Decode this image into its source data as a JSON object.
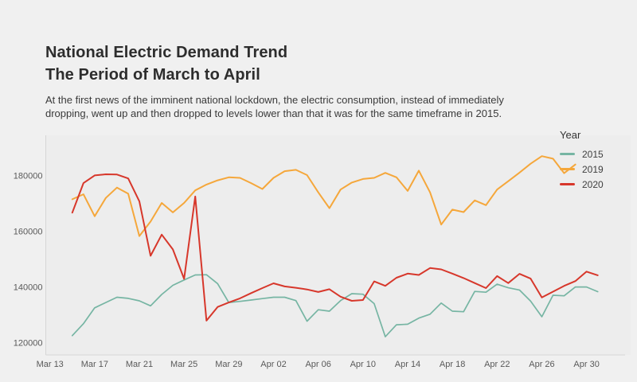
{
  "page": {
    "background": "#f0f0f0",
    "panel_background": "#ededed",
    "axis_line_color": "#d6d6d6"
  },
  "header": {
    "title_line1": "National Electric Demand Trend",
    "title_line2": "The Period of March to April",
    "subtitle_line1": "At the first news of the imminent national lockdown, the electric consumption, instead of immediately",
    "subtitle_line2": "dropping, went up and then dropped to levels lower than that it was for the same timeframe in 2015."
  },
  "legend": {
    "title": "Year",
    "items": [
      {
        "label": "2015",
        "color": "#76b5a3"
      },
      {
        "label": "2019",
        "color": "#f5a73b"
      },
      {
        "label": "2020",
        "color": "#d7372b"
      }
    ]
  },
  "chart_data": {
    "type": "line",
    "title": "National Electric Demand Trend — The Period of March to April",
    "xlabel": "",
    "ylabel": "",
    "grid": false,
    "legend_position": "top-right",
    "ylim": [
      113000,
      194500
    ],
    "y_ticks": [
      120000,
      140000,
      160000,
      180000
    ],
    "x_tick_labels": [
      "Mar 13",
      "Mar 17",
      "Mar 21",
      "Mar 25",
      "Mar 29",
      "Apr 02",
      "Apr 06",
      "Apr 10",
      "Apr 14",
      "Apr 18",
      "Apr 22",
      "Apr 26",
      "Apr 30"
    ],
    "x": [
      "Mar 15",
      "Mar 16",
      "Mar 17",
      "Mar 18",
      "Mar 19",
      "Mar 20",
      "Mar 21",
      "Mar 22",
      "Mar 23",
      "Mar 24",
      "Mar 25",
      "Mar 26",
      "Mar 27",
      "Mar 28",
      "Mar 29",
      "Mar 30",
      "Mar 31",
      "Apr 01",
      "Apr 02",
      "Apr 03",
      "Apr 04",
      "Apr 05",
      "Apr 06",
      "Apr 07",
      "Apr 08",
      "Apr 09",
      "Apr 10",
      "Apr 11",
      "Apr 12",
      "Apr 13",
      "Apr 14",
      "Apr 15",
      "Apr 16",
      "Apr 17",
      "Apr 18",
      "Apr 19",
      "Apr 20",
      "Apr 21",
      "Apr 22",
      "Apr 23",
      "Apr 24",
      "Apr 25",
      "Apr 26",
      "Apr 27",
      "Apr 28",
      "Apr 29",
      "Apr 30",
      "May 01"
    ],
    "series": [
      {
        "name": "2015",
        "color": "#76b5a3",
        "stroke_width": 1.7,
        "values": [
          122500,
          126800,
          132500,
          134400,
          136300,
          135900,
          135000,
          133200,
          137300,
          140600,
          142500,
          144300,
          144400,
          141200,
          134400,
          134800,
          135300,
          135800,
          136300,
          136300,
          135100,
          127700,
          131800,
          131300,
          135100,
          137600,
          137400,
          134000,
          122100,
          126400,
          126600,
          128800,
          130200,
          134200,
          131300,
          131100,
          138400,
          138100,
          141000,
          139700,
          138900,
          134900,
          129300,
          137000,
          136800,
          140000,
          140000,
          138300
        ]
      },
      {
        "name": "2019",
        "color": "#f5a73b",
        "stroke_width": 2,
        "values": [
          171500,
          173300,
          165400,
          172000,
          175700,
          173500,
          158300,
          163500,
          170200,
          166800,
          170200,
          174700,
          176800,
          178300,
          179400,
          179200,
          177300,
          175200,
          179200,
          181600,
          182100,
          180200,
          174000,
          168300,
          175000,
          177500,
          178800,
          179200,
          181000,
          179400,
          174500,
          181800,
          174000,
          162400,
          167800,
          166900,
          171100,
          169400,
          175000,
          178000,
          181100,
          184300,
          187000,
          186100,
          180900,
          184000,
          null,
          null
        ]
      },
      {
        "name": "2020",
        "color": "#d7372b",
        "stroke_width": 2,
        "values": [
          166700,
          177300,
          180100,
          180500,
          180400,
          179000,
          170800,
          151200,
          158800,
          153500,
          142900,
          172500,
          127900,
          132800,
          134400,
          135900,
          137800,
          139600,
          141300,
          140200,
          139700,
          139100,
          138200,
          139200,
          136500,
          135000,
          135300,
          142000,
          140400,
          143300,
          144800,
          144300,
          146800,
          146300,
          144800,
          143200,
          141400,
          139600,
          143900,
          141400,
          144700,
          143000,
          136200,
          138300,
          140400,
          142100,
          145500,
          144200
        ]
      }
    ]
  }
}
